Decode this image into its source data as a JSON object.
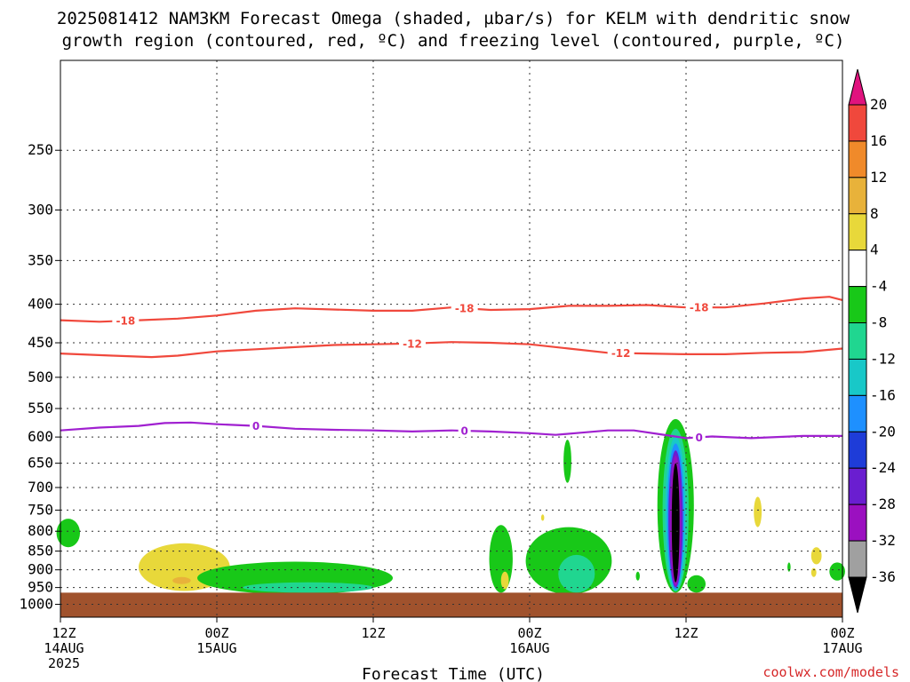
{
  "title_line1": "2025081412 NAM3KM Forecast Omega (shaded, µbar/s) for KELM with dendritic snow",
  "title_line2": "growth region (contoured, red, ºC) and freezing level (contoured, purple, ºC)",
  "credit": "coolwx.com/models",
  "chart_data": {
    "type": "time-height cross section",
    "xlabel": "Forecast Time (UTC)",
    "x_ticks": [
      {
        "lines": [
          "12Z",
          "14AUG",
          "2025"
        ],
        "hour": 0
      },
      {
        "lines": [
          "00Z",
          "15AUG"
        ],
        "hour": 12
      },
      {
        "lines": [
          "12Z"
        ],
        "hour": 24
      },
      {
        "lines": [
          "00Z",
          "16AUG"
        ],
        "hour": 36
      },
      {
        "lines": [
          "12Z"
        ],
        "hour": 48
      },
      {
        "lines": [
          "00Z",
          "17AUG"
        ],
        "hour": 60
      }
    ],
    "xlim": [
      0,
      60
    ],
    "y_ticks": [
      250,
      300,
      350,
      400,
      450,
      500,
      550,
      600,
      650,
      700,
      750,
      800,
      850,
      900,
      950,
      1000
    ],
    "ylim_hPa": [
      190,
      1040
    ],
    "grid": true,
    "ground_pressure_hPa": 965,
    "colorbar": {
      "label_values": [
        20,
        16,
        12,
        8,
        4,
        -4,
        -8,
        -12,
        -16,
        -20,
        -24,
        -28,
        -32,
        -36
      ],
      "bands": [
        {
          "from": 20,
          "to": 24,
          "color": "#e0137e",
          "shape": "arrow-top"
        },
        {
          "from": 16,
          "to": 20,
          "color": "#f0483c"
        },
        {
          "from": 12,
          "to": 16,
          "color": "#f08a2a"
        },
        {
          "from": 8,
          "to": 12,
          "color": "#e8b23a"
        },
        {
          "from": 4,
          "to": 8,
          "color": "#e8d83a"
        },
        {
          "from": -4,
          "to": 4,
          "color": "#ffffff"
        },
        {
          "from": -8,
          "to": -4,
          "color": "#18c818"
        },
        {
          "from": -12,
          "to": -8,
          "color": "#20d690"
        },
        {
          "from": -16,
          "to": -12,
          "color": "#18c8c8"
        },
        {
          "from": -20,
          "to": -16,
          "color": "#1e90ff"
        },
        {
          "from": -24,
          "to": -20,
          "color": "#1e3cd8"
        },
        {
          "from": -28,
          "to": -24,
          "color": "#6a1ed0"
        },
        {
          "from": -32,
          "to": -28,
          "color": "#9b10c0"
        },
        {
          "from": -36,
          "to": -32,
          "color": "#a0a0a0"
        },
        {
          "from": -40,
          "to": -36,
          "color": "#000000",
          "shape": "arrow-bottom"
        }
      ]
    },
    "contours": [
      {
        "name": "-18",
        "color": "#f0483c",
        "label_hours": [
          5,
          31,
          49
        ],
        "points": [
          [
            0,
            420
          ],
          [
            3,
            422
          ],
          [
            6,
            420
          ],
          [
            9,
            418
          ],
          [
            12,
            414
          ],
          [
            15,
            408
          ],
          [
            18,
            405
          ],
          [
            24,
            408
          ],
          [
            27,
            408
          ],
          [
            30,
            404
          ],
          [
            33,
            407
          ],
          [
            36,
            406
          ],
          [
            39,
            402
          ],
          [
            42,
            402
          ],
          [
            45,
            401
          ],
          [
            48,
            404
          ],
          [
            51,
            404
          ],
          [
            54,
            399
          ],
          [
            57,
            393
          ],
          [
            59,
            391
          ],
          [
            60,
            395
          ]
        ]
      },
      {
        "name": "-12",
        "color": "#f0483c",
        "label_hours": [
          27,
          43
        ],
        "points": [
          [
            0,
            465
          ],
          [
            4,
            468
          ],
          [
            7,
            470
          ],
          [
            9,
            468
          ],
          [
            12,
            462
          ],
          [
            15,
            459
          ],
          [
            18,
            456
          ],
          [
            21,
            453
          ],
          [
            24,
            452
          ],
          [
            27,
            451
          ],
          [
            30,
            449
          ],
          [
            33,
            450
          ],
          [
            36,
            452
          ],
          [
            39,
            458
          ],
          [
            42,
            464
          ],
          [
            45,
            465
          ],
          [
            48,
            466
          ],
          [
            51,
            466
          ],
          [
            54,
            464
          ],
          [
            57,
            463
          ],
          [
            60,
            458
          ]
        ]
      },
      {
        "name": "0",
        "color": "#a020d0",
        "label_hours": [
          15,
          31,
          49
        ],
        "points": [
          [
            0,
            588
          ],
          [
            3,
            583
          ],
          [
            6,
            580
          ],
          [
            8,
            575
          ],
          [
            10,
            574
          ],
          [
            12,
            577
          ],
          [
            15,
            580
          ],
          [
            18,
            585
          ],
          [
            21,
            587
          ],
          [
            24,
            588
          ],
          [
            27,
            590
          ],
          [
            30,
            588
          ],
          [
            33,
            590
          ],
          [
            36,
            593
          ],
          [
            38,
            596
          ],
          [
            40,
            592
          ],
          [
            42,
            588
          ],
          [
            44,
            588
          ],
          [
            46,
            595
          ],
          [
            48,
            602
          ],
          [
            50,
            599
          ],
          [
            53,
            602
          ],
          [
            55,
            600
          ],
          [
            57,
            598
          ],
          [
            60,
            598
          ]
        ]
      }
    ],
    "omega_regions": [
      {
        "value_range": [
          4,
          8
        ],
        "time_center": 9.5,
        "time_halfwidth": 3.5,
        "p_top": 830,
        "p_bottom": 960
      },
      {
        "value_range": [
          8,
          12
        ],
        "time_center": 9.3,
        "time_halfwidth": 0.7,
        "p_top": 920,
        "p_bottom": 940
      },
      {
        "value_range": [
          -8,
          -4
        ],
        "time_center": 0.6,
        "time_halfwidth": 0.9,
        "p_top": 770,
        "p_bottom": 840
      },
      {
        "value_range": [
          -8,
          -4
        ],
        "time_center": 18.0,
        "time_halfwidth": 7.5,
        "p_top": 878,
        "p_bottom": 970
      },
      {
        "value_range": [
          -12,
          -8
        ],
        "time_center": 19.0,
        "time_halfwidth": 5.0,
        "p_top": 935,
        "p_bottom": 965
      },
      {
        "value_range": [
          -8,
          -4
        ],
        "time_center": 33.8,
        "time_halfwidth": 0.9,
        "p_top": 785,
        "p_bottom": 965
      },
      {
        "value_range": [
          4,
          8
        ],
        "time_center": 34.1,
        "time_halfwidth": 0.3,
        "p_top": 905,
        "p_bottom": 955
      },
      {
        "value_range": [
          -8,
          -4
        ],
        "time_center": 39.0,
        "time_halfwidth": 3.3,
        "p_top": 790,
        "p_bottom": 970
      },
      {
        "value_range": [
          -12,
          -8
        ],
        "time_center": 39.6,
        "time_halfwidth": 1.4,
        "p_top": 860,
        "p_bottom": 965
      },
      {
        "value_range": [
          -8,
          -4
        ],
        "time_center": 38.9,
        "time_halfwidth": 0.3,
        "p_top": 605,
        "p_bottom": 690
      },
      {
        "value_range": [
          -8,
          -4
        ],
        "time_center": 47.2,
        "time_halfwidth": 1.4,
        "p_top": 568,
        "p_bottom": 965
      },
      {
        "value_range": [
          -12,
          -8
        ],
        "time_center": 47.2,
        "time_halfwidth": 1.0,
        "p_top": 585,
        "p_bottom": 962
      },
      {
        "value_range": [
          -16,
          -12
        ],
        "time_center": 47.2,
        "time_halfwidth": 0.8,
        "p_top": 600,
        "p_bottom": 960
      },
      {
        "value_range": [
          -20,
          -16
        ],
        "time_center": 47.2,
        "time_halfwidth": 0.65,
        "p_top": 612,
        "p_bottom": 955
      },
      {
        "value_range": [
          -28,
          -24
        ],
        "time_center": 47.2,
        "time_halfwidth": 0.55,
        "p_top": 625,
        "p_bottom": 950
      },
      {
        "value_range": [
          -32,
          -28
        ],
        "time_center": 47.2,
        "time_halfwidth": 0.42,
        "p_top": 635,
        "p_bottom": 945
      },
      {
        "value_range": [
          -40,
          -36
        ],
        "time_center": 47.2,
        "time_halfwidth": 0.3,
        "p_top": 650,
        "p_bottom": 935
      },
      {
        "value_range": [
          -8,
          -4
        ],
        "time_center": 48.8,
        "time_halfwidth": 0.7,
        "p_top": 915,
        "p_bottom": 965
      },
      {
        "value_range": [
          4,
          8
        ],
        "time_center": 53.5,
        "time_halfwidth": 0.3,
        "p_top": 720,
        "p_bottom": 790
      },
      {
        "value_range": [
          4,
          8
        ],
        "time_center": 58.0,
        "time_halfwidth": 0.4,
        "p_top": 840,
        "p_bottom": 885
      },
      {
        "value_range": [
          4,
          8
        ],
        "time_center": 57.8,
        "time_halfwidth": 0.2,
        "p_top": 895,
        "p_bottom": 920
      },
      {
        "value_range": [
          -8,
          -4
        ],
        "time_center": 59.6,
        "time_halfwidth": 0.6,
        "p_top": 880,
        "p_bottom": 930
      },
      {
        "value_range": [
          -8,
          -4
        ],
        "time_center": 55.9,
        "time_halfwidth": 0.12,
        "p_top": 880,
        "p_bottom": 905
      },
      {
        "value_range": [
          -8,
          -4
        ],
        "time_center": 44.3,
        "time_halfwidth": 0.15,
        "p_top": 905,
        "p_bottom": 930
      },
      {
        "value_range": [
          4,
          8
        ],
        "time_center": 37.0,
        "time_halfwidth": 0.12,
        "p_top": 760,
        "p_bottom": 775
      }
    ]
  }
}
